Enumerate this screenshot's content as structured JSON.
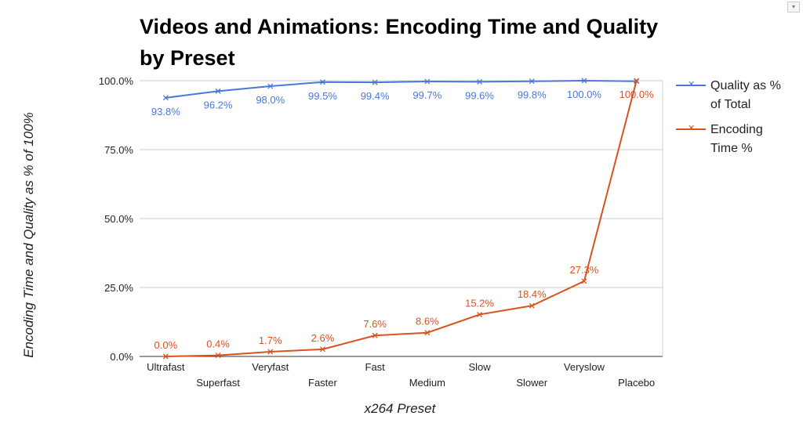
{
  "chart_data": {
    "type": "line",
    "title": "Videos and Animations: Encoding Time and Quality by Preset",
    "xlabel": "x264 Preset",
    "ylabel": "Encoding Time and Quality as % of 100%",
    "categories": [
      "Ultrafast",
      "Superfast",
      "Veryfast",
      "Faster",
      "Fast",
      "Medium",
      "Slow",
      "Slower",
      "Veryslow",
      "Placebo"
    ],
    "ylim": [
      0,
      100
    ],
    "yticks": [
      0,
      25,
      50,
      75,
      100
    ],
    "ytick_labels": [
      "0.0%",
      "25.0%",
      "50.0%",
      "75.0%",
      "100.0%"
    ],
    "grid": true,
    "legend_position": "right",
    "series": [
      {
        "name": "Quality as % of Total",
        "legend_lines": [
          "Quality as %",
          "of Total"
        ],
        "color": "#4a78d6",
        "values": [
          93.8,
          96.2,
          98.0,
          99.5,
          99.4,
          99.7,
          99.6,
          99.8,
          100.0,
          99.8
        ],
        "labels": [
          "93.8%",
          "96.2%",
          "98.0%",
          "99.5%",
          "99.4%",
          "99.7%",
          "99.6%",
          "99.8%",
          "100.0%",
          ""
        ],
        "label_position": "below"
      },
      {
        "name": "Encoding Time %",
        "legend_lines": [
          "Encoding",
          "Time %"
        ],
        "color": "#d9531e",
        "values": [
          0.0,
          0.4,
          1.7,
          2.6,
          7.6,
          8.6,
          15.2,
          18.4,
          27.3,
          100.0
        ],
        "labels": [
          "0.0%",
          "0.4%",
          "1.7%",
          "2.6%",
          "7.6%",
          "8.6%",
          "15.2%",
          "18.4%",
          "27.3%",
          "100.0%"
        ],
        "label_position": "above"
      }
    ]
  }
}
